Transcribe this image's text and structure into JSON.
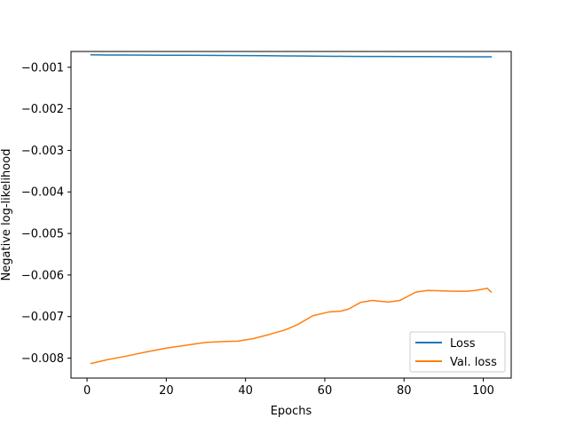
{
  "chart_data": {
    "type": "line",
    "title": "",
    "xlabel": "Epochs",
    "ylabel": "Negative log-likelihood",
    "xlim": [
      -4.05,
      107.05
    ],
    "ylim": [
      -0.00848,
      -0.00062
    ],
    "xticks": [
      0,
      20,
      40,
      60,
      80,
      100
    ],
    "xtick_labels": [
      "0",
      "20",
      "40",
      "60",
      "80",
      "100"
    ],
    "yticks": [
      -0.001,
      -0.002,
      -0.003,
      -0.004,
      -0.005,
      -0.006,
      -0.007,
      -0.008
    ],
    "ytick_labels": [
      "−0.001",
      "−0.002",
      "−0.003",
      "−0.004",
      "−0.005",
      "−0.006",
      "−0.007",
      "−0.008"
    ],
    "grid": false,
    "legend_position": "lower right",
    "series": [
      {
        "name": "Loss",
        "color": "#1f77b4",
        "x": [
          1,
          5,
          10,
          15,
          20,
          25,
          30,
          35,
          40,
          45,
          50,
          55,
          60,
          65,
          70,
          75,
          80,
          85,
          90,
          95,
          100,
          102
        ],
        "y": [
          -0.0007,
          -0.000705,
          -0.000705,
          -0.000708,
          -0.00071,
          -0.000712,
          -0.000713,
          -0.000716,
          -0.000718,
          -0.000722,
          -0.000726,
          -0.00073,
          -0.000734,
          -0.000737,
          -0.00074,
          -0.00074,
          -0.000742,
          -0.000744,
          -0.000746,
          -0.000748,
          -0.000748,
          -0.000748
        ]
      },
      {
        "name": "Val. loss",
        "color": "#ff7f0e",
        "x": [
          1,
          5,
          10,
          15,
          20,
          25,
          30,
          35,
          38,
          42,
          46,
          50,
          53,
          57,
          61,
          64,
          66,
          69,
          72,
          76,
          79,
          81,
          83,
          86,
          89,
          92,
          96,
          98,
          101,
          102
        ],
        "y": [
          -0.00813,
          -0.00804,
          -0.00795,
          -0.00785,
          -0.00776,
          -0.00769,
          -0.00762,
          -0.0076,
          -0.00759,
          -0.00753,
          -0.00743,
          -0.00732,
          -0.0072,
          -0.00698,
          -0.00689,
          -0.00687,
          -0.00682,
          -0.00666,
          -0.00661,
          -0.00665,
          -0.00661,
          -0.00651,
          -0.00641,
          -0.00637,
          -0.00638,
          -0.00639,
          -0.00639,
          -0.00637,
          -0.00632,
          -0.00641
        ]
      }
    ]
  }
}
